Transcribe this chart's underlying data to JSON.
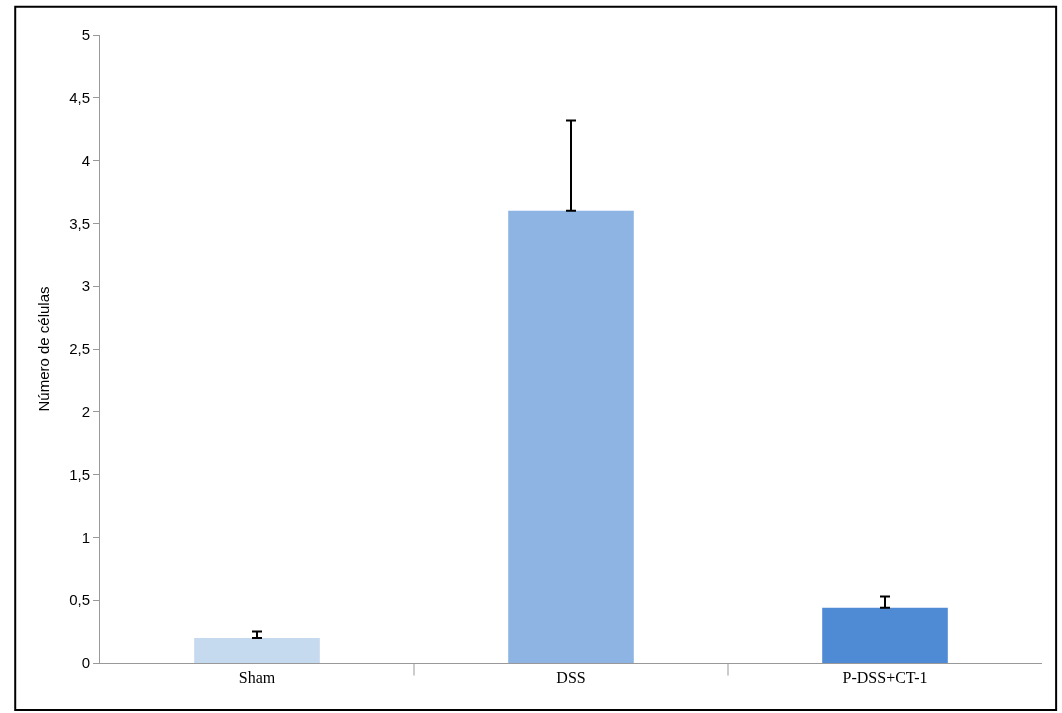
{
  "chart_data": {
    "type": "bar",
    "ylabel": "Número de células",
    "categories": [
      "Sham",
      "DSS",
      "P-DSS+CT-1"
    ],
    "values": [
      0.2,
      3.6,
      0.44
    ],
    "colors": [
      "#c5d9ef",
      "#8db4e2",
      "#4f8bd5"
    ],
    "errors": [
      [
        0.2,
        0.25
      ],
      [
        3.6,
        4.32
      ],
      [
        0.44,
        0.53
      ]
    ],
    "ylim": [
      0,
      5
    ],
    "yticks": [
      0,
      {
        "value": 0.5,
        "label": "0,5"
      },
      1,
      {
        "value": 1.5,
        "label": "1,5"
      },
      2,
      {
        "value": 2.5,
        "label": "2,5"
      },
      3,
      {
        "value": 3.5,
        "label": "3,5"
      },
      4,
      {
        "value": 4.5,
        "label": "4,5"
      },
      5
    ],
    "grid": false
  }
}
